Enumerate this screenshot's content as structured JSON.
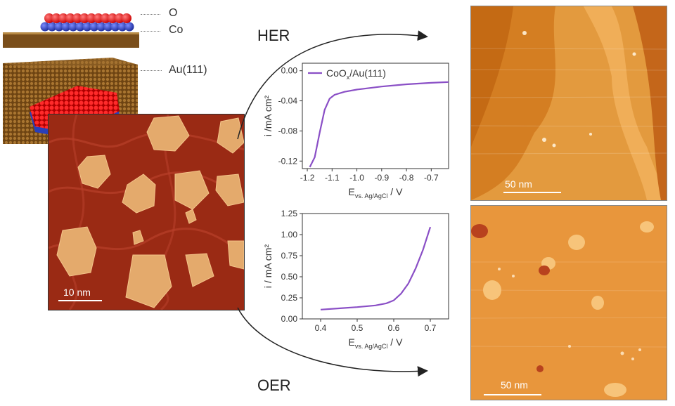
{
  "labels": {
    "layer_o": "O",
    "layer_co": "Co",
    "substrate": "Au(111)",
    "her": "HER",
    "oer": "OER"
  },
  "scale_bars": {
    "main": "10 nm",
    "her_image": "50 nm",
    "oer_image": "50 nm"
  },
  "colors": {
    "oxygen": "#e01818",
    "cobalt": "#2a3fb8",
    "gold_substrate": "#8a5a1e",
    "curve": "#8a4fc6",
    "stm_main_bg": "#9a2a14",
    "stm_main_island": "#e0a66a",
    "stm_large_bg": "#d98a2e"
  },
  "chart_data": [
    {
      "type": "line",
      "title": "",
      "legend": "CoO",
      "legend_sub": "x",
      "legend_rest": "/Au(111)",
      "ylabel": "i  /mA cm²",
      "xlabel_main": "E",
      "xlabel_sub": "vs. Ag/AgCl",
      "xlabel_unit": " / V",
      "xlim": [
        -1.22,
        -0.63
      ],
      "ylim": [
        -0.13,
        0.01
      ],
      "xticks": [
        "-1.2",
        "-1.1",
        "-1.0",
        "-0.9",
        "-0.8",
        "-0.7"
      ],
      "xtick_values": [
        -1.2,
        -1.1,
        -1.0,
        -0.9,
        -0.8,
        -0.7
      ],
      "yticks": [
        "0.00",
        "-0.04",
        "-0.08",
        "-0.12"
      ],
      "ytick_values": [
        0.0,
        -0.04,
        -0.08,
        -0.12
      ],
      "series": [
        {
          "x": [
            -1.19,
            -1.17,
            -1.15,
            -1.13,
            -1.11,
            -1.09,
            -1.05,
            -1.0,
            -0.9,
            -0.8,
            -0.7,
            -0.63
          ],
          "y": [
            -0.128,
            -0.115,
            -0.082,
            -0.052,
            -0.037,
            -0.032,
            -0.028,
            -0.025,
            -0.021,
            -0.018,
            -0.016,
            -0.015
          ]
        }
      ]
    },
    {
      "type": "line",
      "title": "",
      "ylabel": "i / mA cm²",
      "xlabel_main": "E",
      "xlabel_sub": "vs. Ag/AgCl",
      "xlabel_unit": " / V",
      "xlim": [
        0.35,
        0.75
      ],
      "ylim": [
        0.0,
        1.25
      ],
      "xticks": [
        "0.4",
        "0.5",
        "0.6",
        "0.7"
      ],
      "xtick_values": [
        0.4,
        0.5,
        0.6,
        0.7
      ],
      "yticks": [
        "0.00",
        "0.25",
        "0.50",
        "0.75",
        "1.00",
        "1.25"
      ],
      "ytick_values": [
        0.0,
        0.25,
        0.5,
        0.75,
        1.0,
        1.25
      ],
      "series": [
        {
          "x": [
            0.4,
            0.45,
            0.5,
            0.55,
            0.58,
            0.6,
            0.62,
            0.64,
            0.66,
            0.68,
            0.7
          ],
          "y": [
            0.11,
            0.125,
            0.14,
            0.16,
            0.185,
            0.22,
            0.3,
            0.42,
            0.6,
            0.82,
            1.09
          ]
        }
      ]
    }
  ]
}
